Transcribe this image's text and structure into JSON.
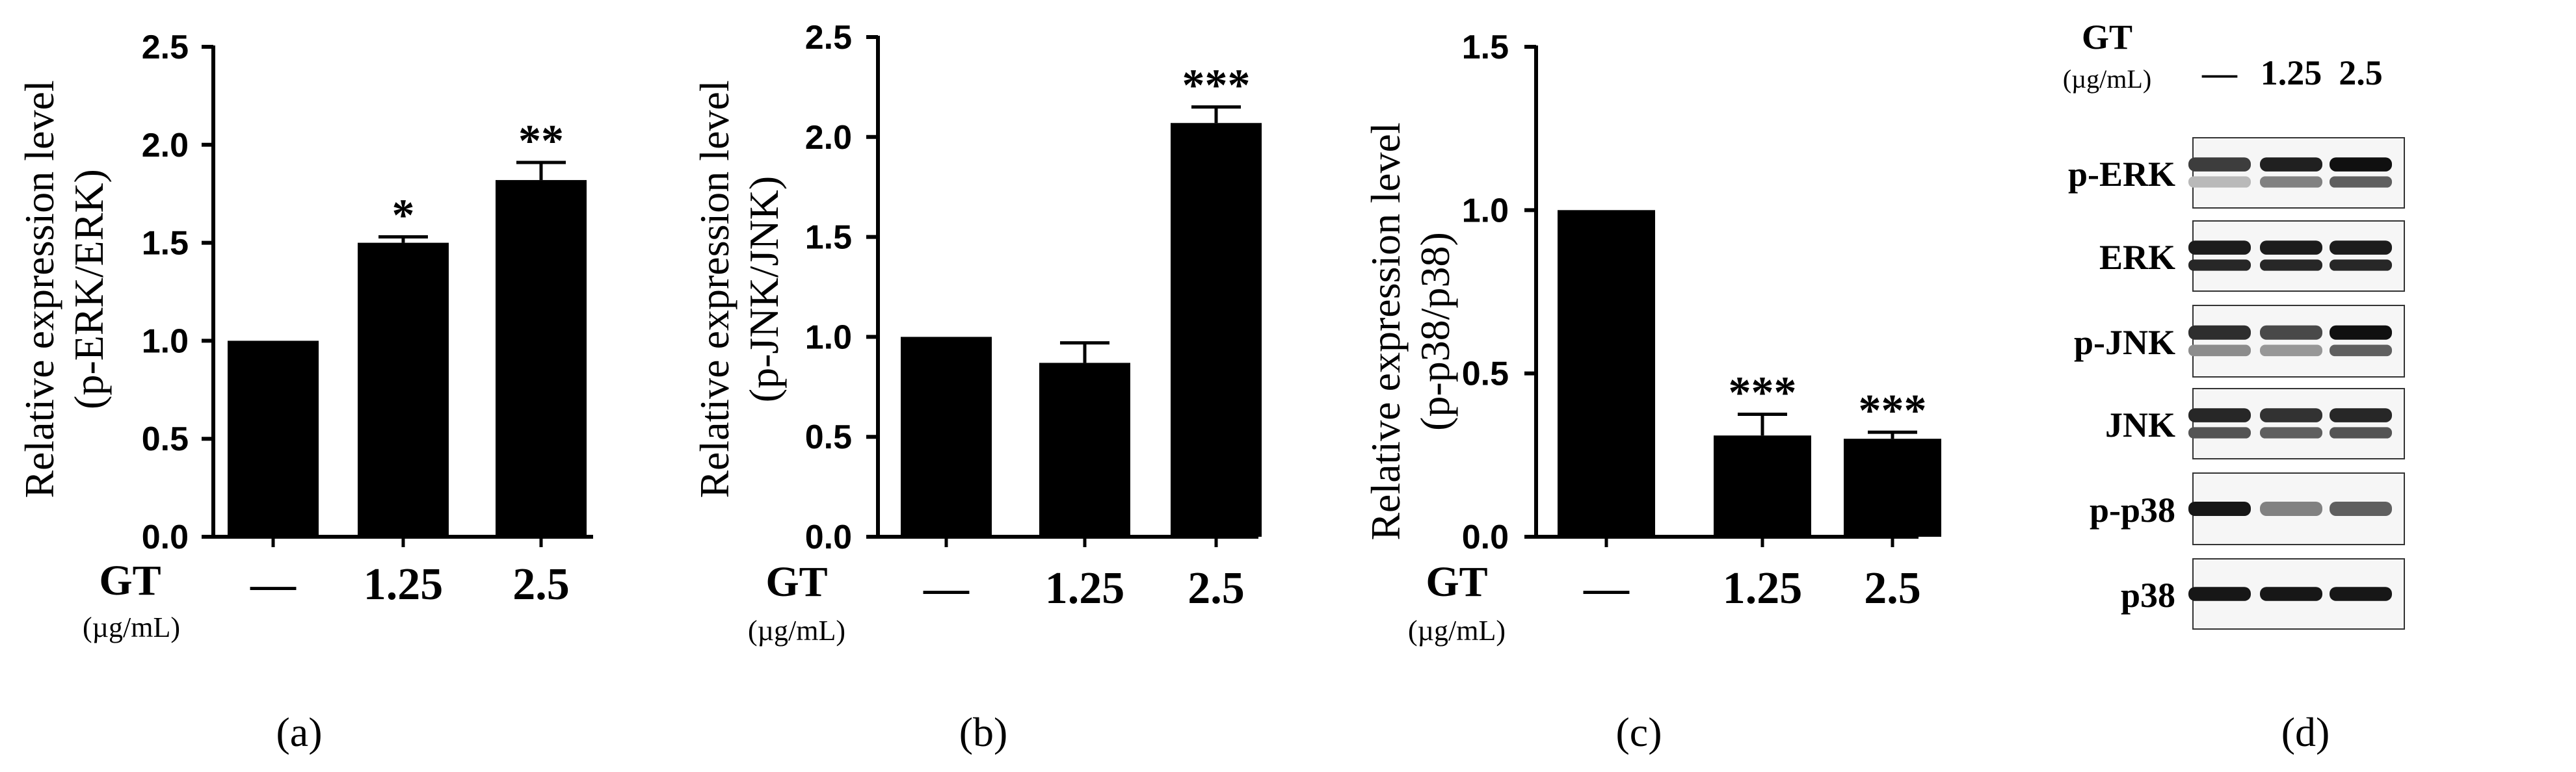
{
  "chart_data": [
    {
      "type": "bar",
      "panel_label": "(a)",
      "ylabel_line1": "Relative expression level",
      "ylabel_line2": "(p-ERK/ERK)",
      "xlabel": "GT",
      "xunit": "(µg/mL)",
      "categories": [
        "—",
        "1.25",
        "2.5"
      ],
      "values": [
        1.0,
        1.5,
        1.82
      ],
      "errors": [
        0,
        0.03,
        0.09
      ],
      "significance": [
        "",
        "*",
        "**"
      ],
      "ylim": [
        0,
        2.5
      ],
      "yticks": [
        0.0,
        0.5,
        1.0,
        1.5,
        2.0,
        2.5
      ],
      "ytick_labels": [
        "0.0",
        "0.5",
        "1.0",
        "1.5",
        "2.0",
        "2.5"
      ]
    },
    {
      "type": "bar",
      "panel_label": "(b)",
      "ylabel_line1": "Relative expression level",
      "ylabel_line2": "(p-JNK/JNK)",
      "xlabel": "GT",
      "xunit": "(µg/mL)",
      "categories": [
        "—",
        "1.25",
        "2.5"
      ],
      "values": [
        1.0,
        0.87,
        2.07
      ],
      "errors": [
        0,
        0.1,
        0.08
      ],
      "significance": [
        "",
        "",
        "***"
      ],
      "ylim": [
        0,
        2.5
      ],
      "yticks": [
        0.0,
        0.5,
        1.0,
        1.5,
        2.0,
        2.5
      ],
      "ytick_labels": [
        "0.0",
        "0.5",
        "1.0",
        "1.5",
        "2.0",
        "2.5"
      ]
    },
    {
      "type": "bar",
      "panel_label": "(c)",
      "ylabel_line1": "Relative expression level",
      "ylabel_line2": "(p-p38/p38)",
      "xlabel": "GT",
      "xunit": "(µg/mL)",
      "categories": [
        "—",
        "1.25",
        "2.5"
      ],
      "values": [
        1.0,
        0.31,
        0.3
      ],
      "errors": [
        0,
        0.065,
        0.02
      ],
      "significance": [
        "",
        "***",
        "***"
      ],
      "ylim": [
        0,
        1.5
      ],
      "yticks": [
        0.0,
        0.5,
        1.0,
        1.5
      ],
      "ytick_labels": [
        "0.0",
        "0.5",
        "1.0",
        "1.5"
      ]
    }
  ],
  "blot": {
    "panel_label": "(d)",
    "header_label": "GT",
    "header_unit": "(µg/mL)",
    "lanes": [
      "—",
      "1.25",
      "2.5"
    ],
    "rows": [
      {
        "label": "p-ERK",
        "intensities": [
          0.75,
          0.88,
          0.95
        ],
        "lower_intensities": [
          0.2,
          0.45,
          0.6
        ]
      },
      {
        "label": "ERK",
        "intensities": [
          0.9,
          0.9,
          0.9
        ],
        "lower_intensities": [
          0.85,
          0.85,
          0.85
        ]
      },
      {
        "label": "p-JNK",
        "intensities": [
          0.82,
          0.7,
          0.95
        ],
        "lower_intensities": [
          0.4,
          0.35,
          0.6
        ]
      },
      {
        "label": "JNK",
        "intensities": [
          0.85,
          0.8,
          0.85
        ],
        "lower_intensities": [
          0.65,
          0.6,
          0.65
        ]
      },
      {
        "label": "p-p38",
        "intensities": [
          0.92,
          0.45,
          0.6
        ],
        "lower_intensities": [
          0,
          0,
          0
        ]
      },
      {
        "label": "p38",
        "intensities": [
          0.92,
          0.92,
          0.92
        ],
        "lower_intensities": [
          0,
          0,
          0
        ]
      }
    ]
  }
}
